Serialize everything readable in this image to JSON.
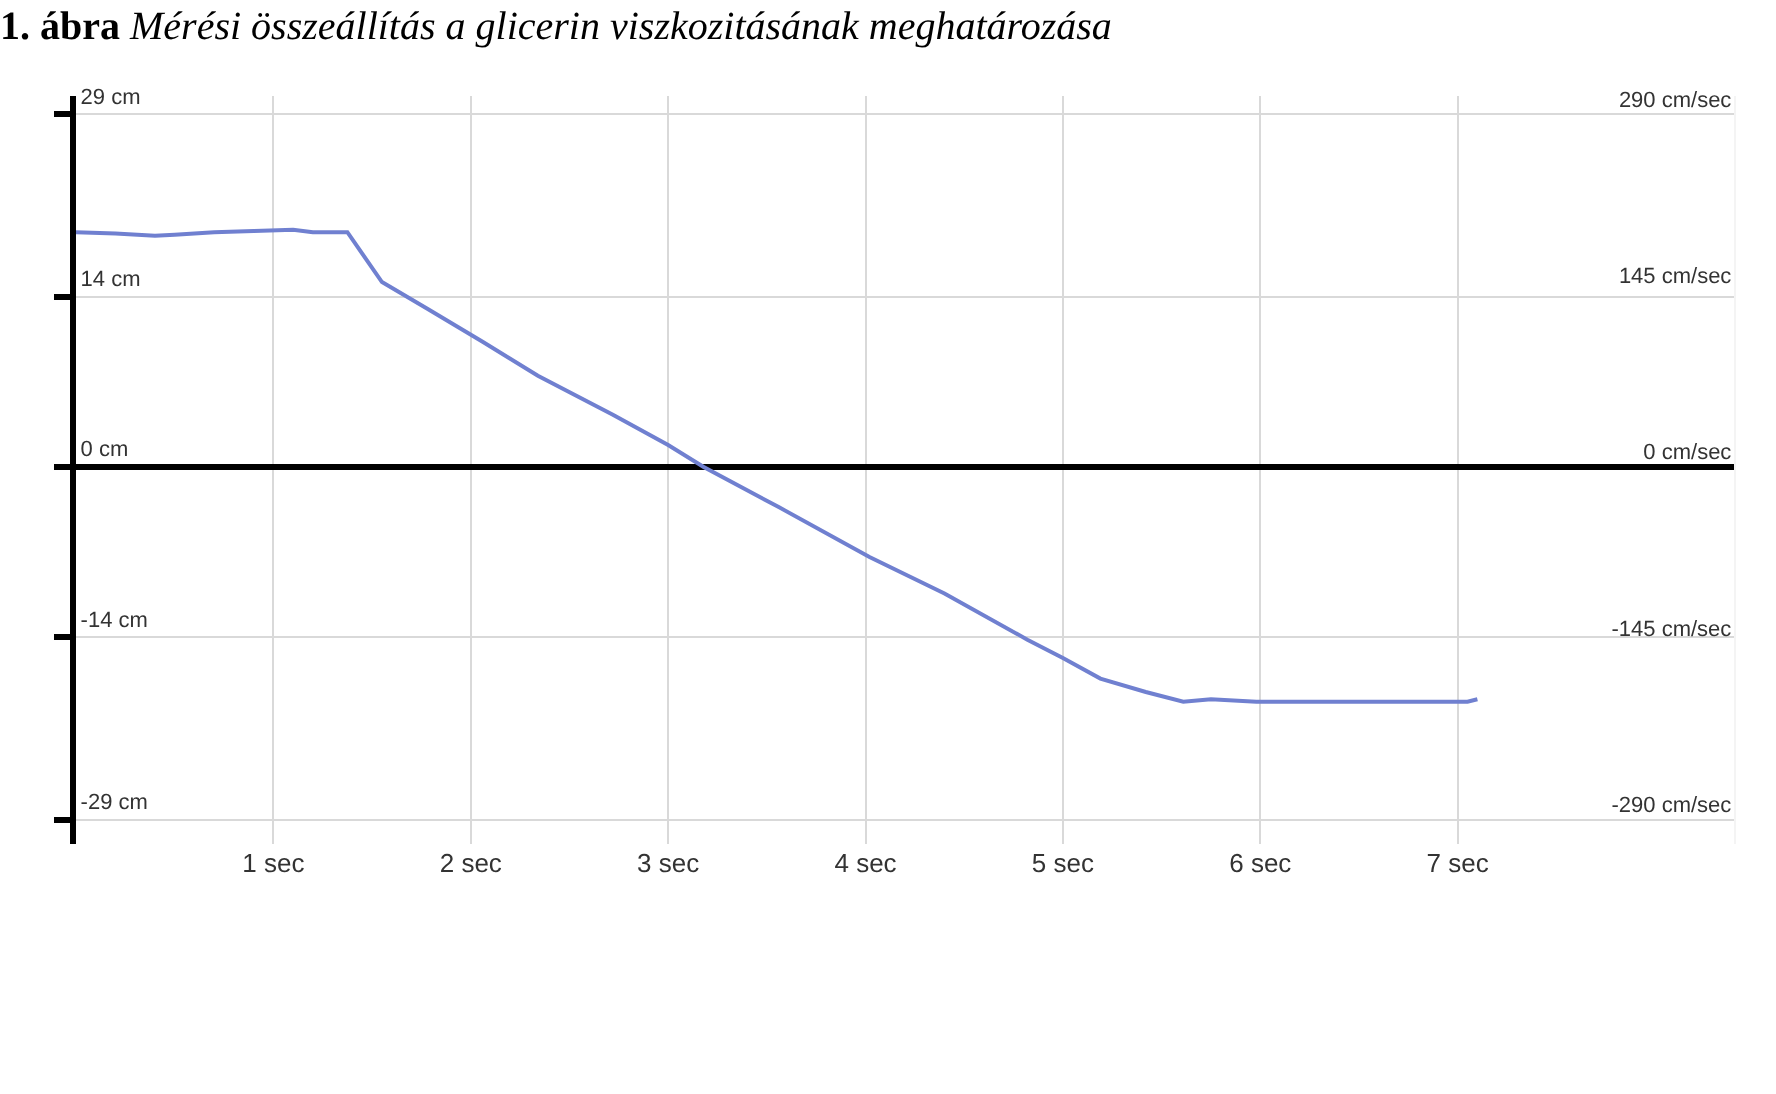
{
  "chart_data": {
    "type": "line",
    "title": "1. ábra Mérési összeállítás a glicerin viszkozitásának meghatározása",
    "series": [
      {
        "color": "#7080d0",
        "x": [
          0,
          0.2,
          0.4,
          0.5,
          0.7,
          0.9,
          1.1,
          1.2,
          1.375,
          1.55,
          1.78,
          2.06,
          2.34,
          2.72,
          3.0,
          3.18,
          3.56,
          4.02,
          4.4,
          4.82,
          5.0,
          5.19,
          5.42,
          5.61,
          5.75,
          5.98,
          6.5,
          7.05,
          7.1
        ],
        "values": [
          19.3,
          19.2,
          19.0,
          19.1,
          19.3,
          19.4,
          19.5,
          19.3,
          19.3,
          15.2,
          13.0,
          10.3,
          7.5,
          4.3,
          1.8,
          0,
          -3.3,
          -7.4,
          -10.4,
          -14.2,
          -15.7,
          -17.4,
          -18.5,
          -19.3,
          -19.1,
          -19.3,
          -19.3,
          -19.3,
          -19.1
        ]
      }
    ],
    "xlim": [
      0,
      8.4
    ],
    "xticks": [
      {
        "value": 1,
        "label": "1 sec"
      },
      {
        "value": 2,
        "label": "2 sec"
      },
      {
        "value": 3,
        "label": "3 sec"
      },
      {
        "value": 4,
        "label": "4 sec"
      },
      {
        "value": 5,
        "label": "5 sec"
      },
      {
        "value": 6,
        "label": "6 sec"
      },
      {
        "value": 7,
        "label": "7 sec"
      }
    ],
    "ylim": [
      -31,
      30.5
    ],
    "yticks": [
      {
        "value": 29,
        "label": "29 cm"
      },
      {
        "value": 14,
        "label": "14 cm"
      },
      {
        "value": 0,
        "label": "0 cm"
      },
      {
        "value": -14,
        "label": "-14 cm"
      },
      {
        "value": -29,
        "label": "-29 cm"
      }
    ],
    "y2lim": [
      -310,
      305
    ],
    "y2ticks": [
      {
        "value": 290,
        "label": "290 cm/sec"
      },
      {
        "value": 145,
        "label": "145 cm/sec"
      },
      {
        "value": 0,
        "label": "0 cm/sec"
      },
      {
        "value": -145,
        "label": "-145 cm/sec"
      },
      {
        "value": -290,
        "label": "-290 cm/sec"
      }
    ],
    "grid": true
  }
}
